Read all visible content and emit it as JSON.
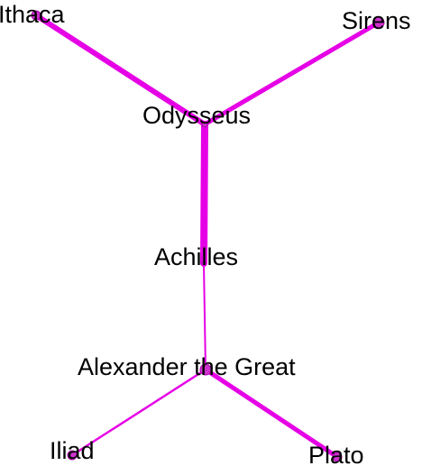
{
  "graph": {
    "edge_color": "#e600e6",
    "node_fill": "#cc33cc",
    "node_stroke": "#aa00aa",
    "label_color": "#000000",
    "nodes": [
      {
        "id": "ithaca",
        "label": "Ithaca"
      },
      {
        "id": "sirens",
        "label": "Sirens"
      },
      {
        "id": "odysseus",
        "label": "Odysseus"
      },
      {
        "id": "achilles",
        "label": "Achilles"
      },
      {
        "id": "alexander",
        "label": "Alexander the Great"
      },
      {
        "id": "iliad",
        "label": "Iliad"
      },
      {
        "id": "plato",
        "label": "Plato"
      }
    ],
    "edges": [
      {
        "source": "odysseus",
        "target": "ithaca"
      },
      {
        "source": "odysseus",
        "target": "sirens"
      },
      {
        "source": "odysseus",
        "target": "achilles"
      },
      {
        "source": "achilles",
        "target": "alexander"
      },
      {
        "source": "alexander",
        "target": "iliad"
      },
      {
        "source": "alexander",
        "target": "plato"
      }
    ]
  }
}
